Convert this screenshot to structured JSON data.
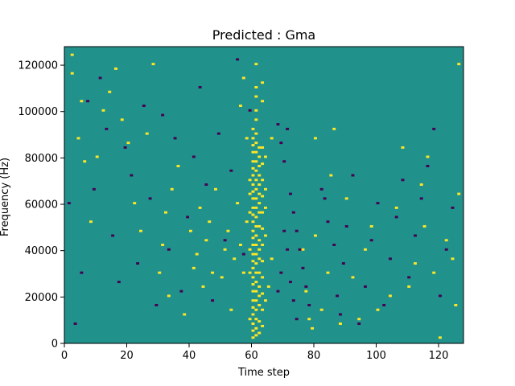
{
  "chart_data": {
    "type": "heatmap",
    "title": "Predicted : Gma",
    "xlabel": "Time step",
    "ylabel": "Frequency (Hz)",
    "xlim": [
      0,
      128
    ],
    "ylim": [
      0,
      128000
    ],
    "x_ticks": [
      0,
      20,
      40,
      60,
      80,
      100,
      120
    ],
    "y_ticks": [
      0,
      20000,
      40000,
      60000,
      80000,
      100000,
      120000
    ],
    "x_tick_labels": [
      "0",
      "20",
      "40",
      "60",
      "80",
      "100",
      "120"
    ],
    "y_tick_labels": [
      "0",
      "20000",
      "40000",
      "60000",
      "80000",
      "100000",
      "120000"
    ],
    "grid": false,
    "n_time_steps": 128,
    "n_frequency_bins": 128,
    "colormap": "viridis",
    "levels": {
      "background": "#21918c",
      "high": "#fde725",
      "low": "#440154"
    },
    "grid_cells": {
      "high": [
        [
          60,
          2
        ],
        [
          60,
          5
        ],
        [
          60,
          8
        ],
        [
          60,
          12
        ],
        [
          60,
          15
        ],
        [
          60,
          18
        ],
        [
          60,
          22
        ],
        [
          60,
          25
        ],
        [
          60,
          28
        ],
        [
          60,
          32
        ],
        [
          60,
          35
        ],
        [
          60,
          38
        ],
        [
          60,
          42
        ],
        [
          60,
          45
        ],
        [
          60,
          48
        ],
        [
          60,
          52
        ],
        [
          60,
          55
        ],
        [
          60,
          58
        ],
        [
          60,
          62
        ],
        [
          60,
          65
        ],
        [
          60,
          68
        ],
        [
          60,
          72
        ],
        [
          60,
          75
        ],
        [
          60,
          78
        ],
        [
          60,
          82
        ],
        [
          60,
          85
        ],
        [
          60,
          88
        ],
        [
          60,
          92
        ],
        [
          61,
          3
        ],
        [
          61,
          6
        ],
        [
          61,
          10
        ],
        [
          61,
          14
        ],
        [
          61,
          18
        ],
        [
          61,
          22
        ],
        [
          61,
          26
        ],
        [
          61,
          30
        ],
        [
          61,
          34
        ],
        [
          61,
          38
        ],
        [
          61,
          42
        ],
        [
          61,
          46
        ],
        [
          61,
          50
        ],
        [
          61,
          54
        ],
        [
          61,
          58
        ],
        [
          61,
          62
        ],
        [
          61,
          66
        ],
        [
          61,
          70
        ],
        [
          61,
          74
        ],
        [
          61,
          78
        ],
        [
          61,
          82
        ],
        [
          61,
          86
        ],
        [
          61,
          90
        ],
        [
          61,
          96
        ],
        [
          61,
          100
        ],
        [
          61,
          106
        ],
        [
          61,
          110
        ],
        [
          61,
          120
        ],
        [
          62,
          4
        ],
        [
          62,
          9
        ],
        [
          62,
          16
        ],
        [
          62,
          20
        ],
        [
          62,
          24
        ],
        [
          62,
          30
        ],
        [
          62,
          36
        ],
        [
          62,
          40
        ],
        [
          62,
          44
        ],
        [
          62,
          50
        ],
        [
          62,
          56
        ],
        [
          62,
          60
        ],
        [
          62,
          64
        ],
        [
          62,
          68
        ],
        [
          62,
          72
        ],
        [
          62,
          76
        ],
        [
          62,
          80
        ],
        [
          62,
          84
        ],
        [
          63,
          7
        ],
        [
          63,
          14
        ],
        [
          63,
          21
        ],
        [
          63,
          28
        ],
        [
          63,
          35
        ],
        [
          63,
          42
        ],
        [
          63,
          49
        ],
        [
          63,
          56
        ],
        [
          63,
          63
        ],
        [
          63,
          70
        ],
        [
          63,
          77
        ],
        [
          63,
          84
        ],
        [
          63,
          104
        ],
        [
          63,
          112
        ],
        [
          59,
          10
        ],
        [
          59,
          30
        ],
        [
          59,
          40
        ],
        [
          59,
          56
        ],
        [
          59,
          64
        ],
        [
          59,
          70
        ],
        [
          64,
          18
        ],
        [
          64,
          46
        ],
        [
          64,
          58
        ],
        [
          64,
          66
        ],
        [
          64,
          80
        ],
        [
          56,
          42
        ],
        [
          57,
          30
        ],
        [
          58,
          52
        ],
        [
          55,
          60
        ],
        [
          65,
          24
        ],
        [
          66,
          36
        ],
        [
          66,
          88
        ],
        [
          76,
          40
        ],
        [
          77,
          22
        ],
        [
          78,
          10
        ],
        [
          79,
          6
        ],
        [
          80,
          46
        ],
        [
          80,
          88
        ],
        [
          82,
          14
        ],
        [
          84,
          30
        ],
        [
          85,
          72
        ],
        [
          86,
          92
        ],
        [
          88,
          8
        ],
        [
          90,
          62
        ],
        [
          92,
          28
        ],
        [
          94,
          10
        ],
        [
          96,
          40
        ],
        [
          98,
          50
        ],
        [
          100,
          14
        ],
        [
          104,
          20
        ],
        [
          106,
          58
        ],
        [
          108,
          84
        ],
        [
          110,
          24
        ],
        [
          112,
          34
        ],
        [
          114,
          68
        ],
        [
          115,
          50
        ],
        [
          116,
          80
        ],
        [
          118,
          30
        ],
        [
          120,
          2
        ],
        [
          122,
          44
        ],
        [
          124,
          36
        ],
        [
          125,
          16
        ],
        [
          126,
          64
        ],
        [
          126,
          120
        ],
        [
          2,
          124
        ],
        [
          2,
          116
        ],
        [
          4,
          88
        ],
        [
          5,
          104
        ],
        [
          6,
          78
        ],
        [
          8,
          52
        ],
        [
          10,
          80
        ],
        [
          12,
          100
        ],
        [
          14,
          108
        ],
        [
          16,
          118
        ],
        [
          18,
          96
        ],
        [
          20,
          86
        ],
        [
          22,
          60
        ],
        [
          24,
          48
        ],
        [
          26,
          90
        ],
        [
          28,
          120
        ],
        [
          30,
          30
        ],
        [
          31,
          42
        ],
        [
          32,
          56
        ],
        [
          33,
          20
        ],
        [
          34,
          66
        ],
        [
          36,
          76
        ],
        [
          38,
          12
        ],
        [
          40,
          48
        ],
        [
          41,
          32
        ],
        [
          42,
          38
        ],
        [
          43,
          58
        ],
        [
          44,
          24
        ],
        [
          45,
          44
        ],
        [
          46,
          52
        ],
        [
          47,
          30
        ],
        [
          48,
          66
        ],
        [
          50,
          28
        ],
        [
          51,
          40
        ],
        [
          52,
          48
        ],
        [
          53,
          14
        ],
        [
          54,
          36
        ],
        [
          56,
          102
        ],
        [
          57,
          114
        ],
        [
          58,
          88
        ]
      ],
      "low": [
        [
          68,
          94
        ],
        [
          69,
          86
        ],
        [
          70,
          78
        ],
        [
          71,
          92
        ],
        [
          72,
          64
        ],
        [
          73,
          56
        ],
        [
          74,
          48
        ],
        [
          75,
          40
        ],
        [
          76,
          32
        ],
        [
          77,
          24
        ],
        [
          78,
          16
        ],
        [
          72,
          26
        ],
        [
          73,
          18
        ],
        [
          74,
          10
        ],
        [
          70,
          48
        ],
        [
          71,
          40
        ],
        [
          69,
          30
        ],
        [
          68,
          22
        ],
        [
          82,
          66
        ],
        [
          83,
          62
        ],
        [
          84,
          52
        ],
        [
          86,
          42
        ],
        [
          87,
          20
        ],
        [
          88,
          12
        ],
        [
          89,
          34
        ],
        [
          90,
          50
        ],
        [
          92,
          72
        ],
        [
          94,
          8
        ],
        [
          96,
          24
        ],
        [
          98,
          44
        ],
        [
          100,
          60
        ],
        [
          102,
          16
        ],
        [
          104,
          36
        ],
        [
          106,
          54
        ],
        [
          108,
          70
        ],
        [
          110,
          28
        ],
        [
          112,
          46
        ],
        [
          114,
          62
        ],
        [
          116,
          76
        ],
        [
          118,
          92
        ],
        [
          120,
          20
        ],
        [
          122,
          40
        ],
        [
          124,
          58
        ],
        [
          1,
          60
        ],
        [
          3,
          8
        ],
        [
          5,
          30
        ],
        [
          7,
          104
        ],
        [
          9,
          66
        ],
        [
          11,
          114
        ],
        [
          13,
          92
        ],
        [
          15,
          46
        ],
        [
          17,
          26
        ],
        [
          19,
          84
        ],
        [
          21,
          72
        ],
        [
          23,
          34
        ],
        [
          25,
          102
        ],
        [
          27,
          62
        ],
        [
          29,
          16
        ],
        [
          31,
          98
        ],
        [
          33,
          40
        ],
        [
          35,
          88
        ],
        [
          37,
          22
        ],
        [
          39,
          54
        ],
        [
          41,
          80
        ],
        [
          43,
          110
        ],
        [
          45,
          68
        ],
        [
          47,
          18
        ],
        [
          49,
          90
        ],
        [
          51,
          44
        ],
        [
          53,
          74
        ],
        [
          55,
          122
        ],
        [
          57,
          38
        ],
        [
          59,
          100
        ]
      ]
    }
  }
}
